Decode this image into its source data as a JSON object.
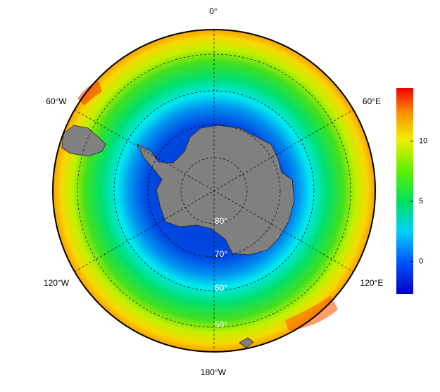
{
  "map": {
    "longitude_labels": [
      "0°",
      "60°E",
      "120°E",
      "180°W",
      "120°W",
      "60°W"
    ],
    "latitude_labels": [
      "80°",
      "70°",
      "60°",
      "50°"
    ],
    "colorbar": {
      "lim": [
        -2.7,
        14.4
      ],
      "ticks": [
        0,
        5,
        10
      ]
    }
  }
}
